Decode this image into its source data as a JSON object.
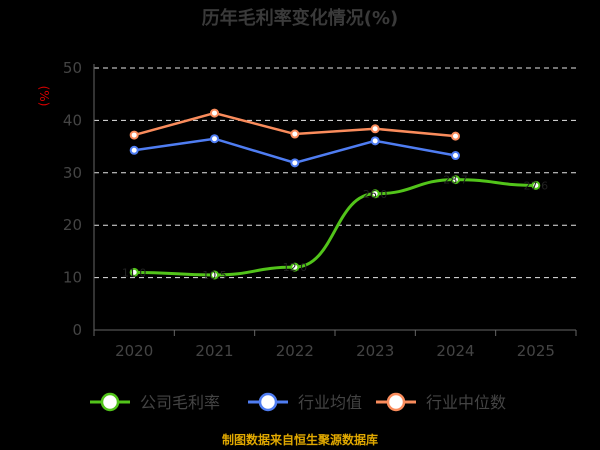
{
  "chart_data": {
    "type": "line",
    "title": "历年毛利率变化情况(%)",
    "ylabel": "(%)",
    "xlabel": "",
    "categories": [
      "2020",
      "2021",
      "2022",
      "2023",
      "2024",
      "2025"
    ],
    "ylim": [
      0,
      50
    ],
    "yticks": [
      0,
      10,
      20,
      30,
      40,
      50
    ],
    "grid": true,
    "legend_position": "bottom",
    "series": [
      {
        "name": "公司毛利率",
        "color": "#52c41a",
        "values": [
          11.0,
          10.5,
          12.0,
          26.0,
          28.7,
          27.6
        ],
        "labels": [
          "11.0",
          "10.5",
          "12.0",
          "26.0",
          "28.7",
          "27.6"
        ]
      },
      {
        "name": "行业均值",
        "color": "#4f7df2",
        "values": [
          34.3,
          36.5,
          31.9,
          36.1,
          33.3,
          null
        ]
      },
      {
        "name": "行业中位数",
        "color": "#fa8c5c",
        "values": [
          37.2,
          41.4,
          37.4,
          38.4,
          37.0,
          null
        ]
      }
    ]
  },
  "source": "制图数据来自恒生聚源数据库"
}
